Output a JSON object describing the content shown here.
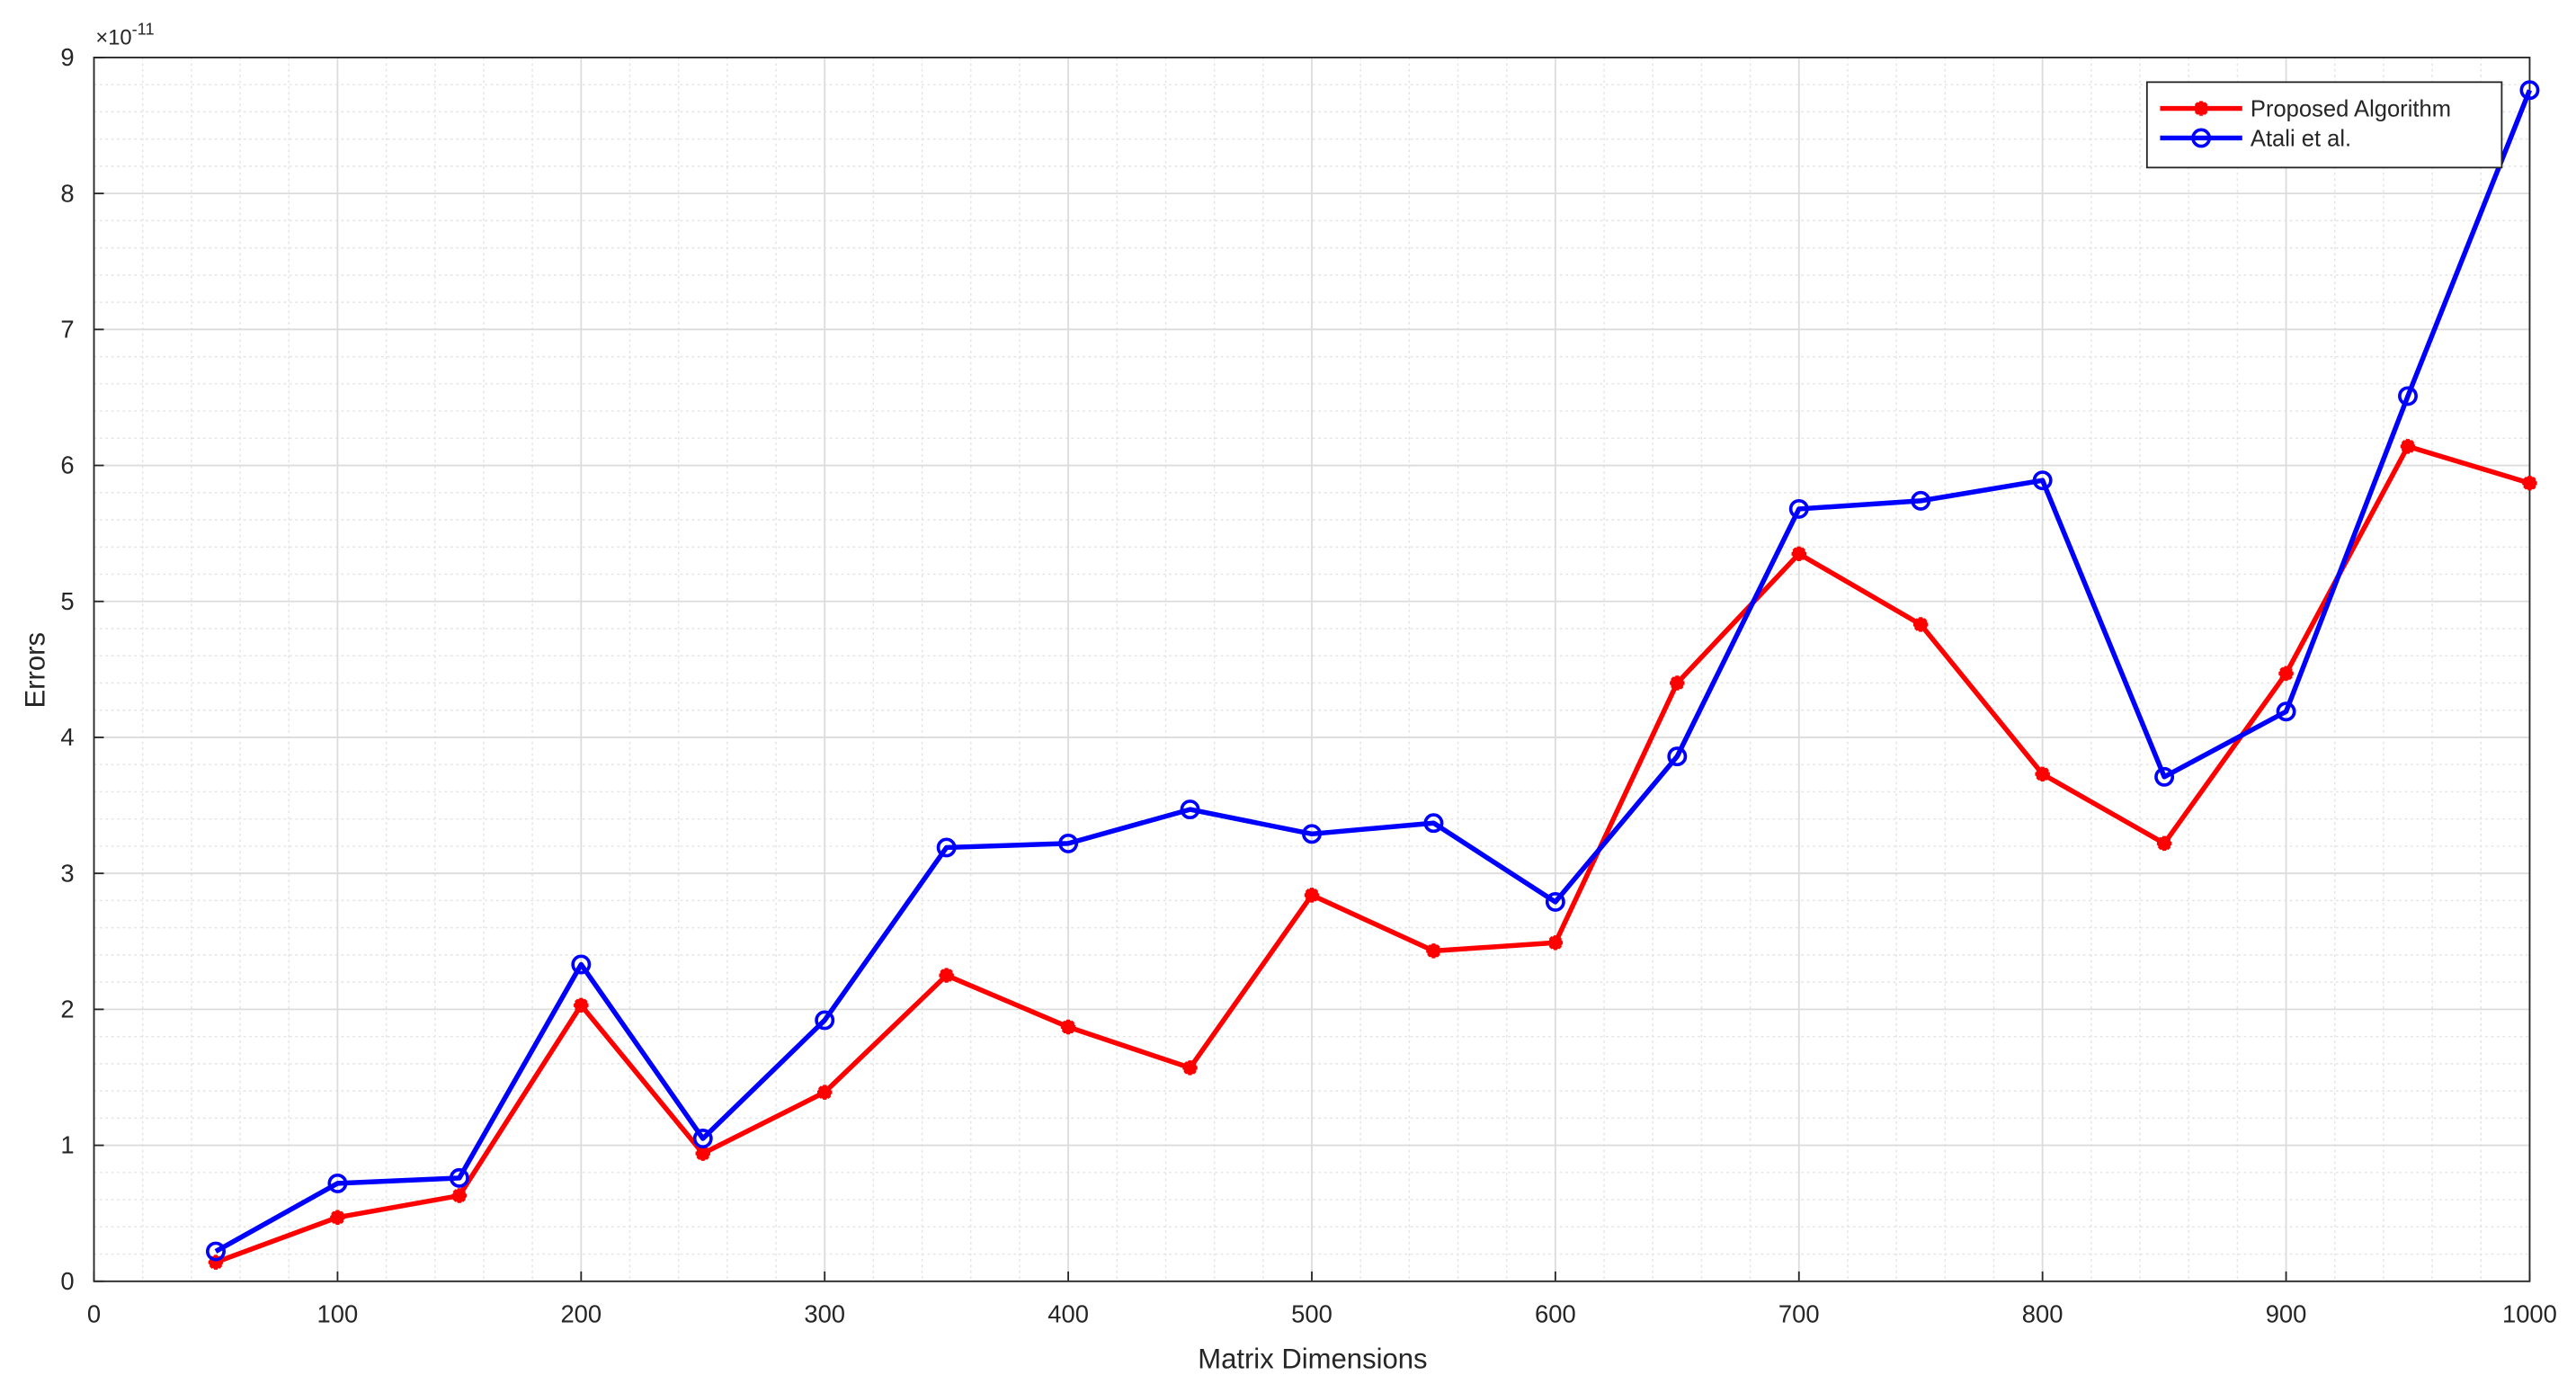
{
  "chart_data": {
    "type": "line",
    "x_label": "Matrix Dimensions",
    "y_label": "Errors",
    "y_multiplier": "×10",
    "y_exponent": "-11",
    "x": [
      50,
      100,
      150,
      200,
      250,
      300,
      350,
      400,
      450,
      500,
      550,
      600,
      650,
      700,
      750,
      800,
      850,
      900,
      950,
      1000
    ],
    "series": [
      {
        "name": "Proposed Algorithm",
        "color": "#ff0000",
        "marker": "asterisk",
        "values": [
          0.14,
          0.47,
          0.63,
          2.03,
          0.94,
          1.39,
          2.25,
          1.87,
          1.57,
          2.84,
          2.43,
          2.49,
          4.4,
          5.35,
          4.83,
          3.73,
          3.22,
          4.47,
          6.14,
          5.87
        ]
      },
      {
        "name": "Atali et al.",
        "color": "#0000ff",
        "marker": "circle",
        "values": [
          0.22,
          0.72,
          0.76,
          2.33,
          1.05,
          1.92,
          3.19,
          3.22,
          3.47,
          3.29,
          3.37,
          2.79,
          3.86,
          5.68,
          5.74,
          5.89,
          3.71,
          4.19,
          6.51,
          8.76
        ]
      }
    ],
    "xlim": [
      0,
      1000
    ],
    "xticks": [
      0,
      100,
      200,
      300,
      400,
      500,
      600,
      700,
      800,
      900,
      1000
    ],
    "ylim": [
      0,
      9
    ],
    "yticks": [
      0,
      1,
      2,
      3,
      4,
      5,
      6,
      7,
      8,
      9
    ],
    "grid": true,
    "minor_grid": true,
    "legend": "top-right"
  }
}
